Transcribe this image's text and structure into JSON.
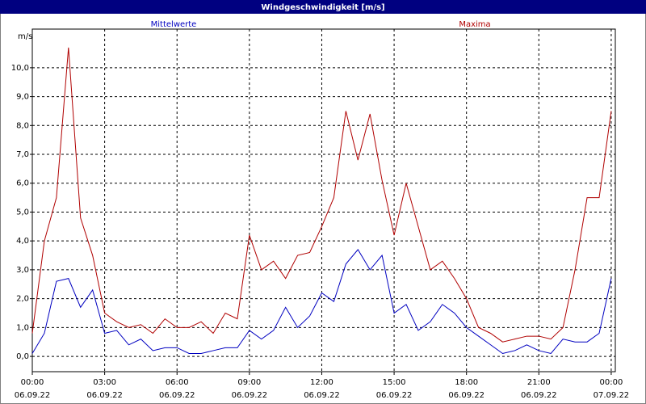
{
  "chart_data": {
    "type": "line",
    "title": "Windgeschwindigkeit [m/s]",
    "y_label": "m/s",
    "x": [
      0,
      0.5,
      1,
      1.5,
      2,
      2.5,
      3,
      3.5,
      4,
      4.5,
      5,
      5.5,
      6,
      6.5,
      7,
      7.5,
      8,
      8.5,
      9,
      9.5,
      10,
      10.5,
      11,
      11.5,
      12,
      12.5,
      13,
      13.5,
      14,
      14.5,
      15,
      15.5,
      16,
      16.5,
      17,
      17.5,
      18,
      18.5,
      19,
      19.5,
      20,
      20.5,
      21,
      21.5,
      22,
      22.5,
      23,
      23.5,
      24
    ],
    "series": [
      {
        "name": "Mittelwerte",
        "color": "#0000c0",
        "values": [
          0.1,
          0.8,
          2.6,
          2.7,
          1.7,
          2.3,
          0.8,
          0.9,
          0.4,
          0.6,
          0.2,
          0.3,
          0.3,
          0.1,
          0.1,
          0.2,
          0.3,
          0.3,
          0.9,
          0.6,
          0.9,
          1.7,
          1.0,
          1.4,
          2.2,
          1.9,
          3.2,
          3.7,
          3.0,
          3.5,
          1.5,
          1.8,
          0.9,
          1.2,
          1.8,
          1.5,
          1.0,
          0.7,
          0.4,
          0.1,
          0.2,
          0.4,
          0.2,
          0.1,
          0.6,
          0.5,
          0.5,
          0.8,
          2.7
        ]
      },
      {
        "name": "Maxima",
        "color": "#b00000",
        "values": [
          0.8,
          4.0,
          5.5,
          10.7,
          4.8,
          3.5,
          1.5,
          1.2,
          1.0,
          1.1,
          0.8,
          1.3,
          1.0,
          1.0,
          1.2,
          0.8,
          1.5,
          1.3,
          4.2,
          3.0,
          3.3,
          2.7,
          3.5,
          3.6,
          4.5,
          5.5,
          8.5,
          6.8,
          8.4,
          6.1,
          4.2,
          6.0,
          4.5,
          3.0,
          3.3,
          2.7,
          2.0,
          1.0,
          0.8,
          0.5,
          0.6,
          0.7,
          0.7,
          0.6,
          1.0,
          3.0,
          5.5,
          5.5,
          8.5
        ]
      }
    ],
    "xlim": [
      0,
      24.17
    ],
    "ylim": [
      -0.53,
      11.34
    ],
    "xticks": [
      {
        "value": 0,
        "label": "00:00 06.09.22"
      },
      {
        "value": 3,
        "label": "03:00 06.09.22"
      },
      {
        "value": 6,
        "label": "06:00 06.09.22"
      },
      {
        "value": 9,
        "label": "09:00 06.09.22"
      },
      {
        "value": 12,
        "label": "12:00 06.09.22"
      },
      {
        "value": 15,
        "label": "15:00 06.09.22"
      },
      {
        "value": 18,
        "label": "18:00 06.09.22"
      },
      {
        "value": 21,
        "label": "21:00 06.09.22"
      },
      {
        "value": 24,
        "label": "00:00 07.09.22"
      }
    ],
    "yticks": [
      {
        "value": 0,
        "label": "0,0"
      },
      {
        "value": 1,
        "label": "1,0"
      },
      {
        "value": 2,
        "label": "2,0"
      },
      {
        "value": 3,
        "label": "3,0"
      },
      {
        "value": 4,
        "label": "4,0"
      },
      {
        "value": 5,
        "label": "5,0"
      },
      {
        "value": 6,
        "label": "6,0"
      },
      {
        "value": 7,
        "label": "7,0"
      },
      {
        "value": 8,
        "label": "8,0"
      },
      {
        "value": 9,
        "label": "9,0"
      },
      {
        "value": 10,
        "label": "10,0"
      }
    ],
    "grid": true
  }
}
